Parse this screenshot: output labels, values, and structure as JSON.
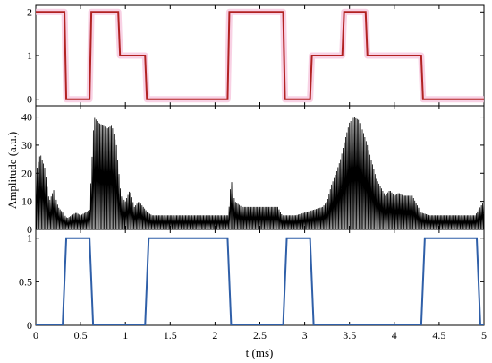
{
  "chart_data": [
    {
      "type": "line",
      "panel": "top",
      "title": "",
      "ylabel": "",
      "xlim": [
        0,
        5
      ],
      "ylim": [
        -0.15,
        2.15
      ],
      "yticks": [
        0,
        1,
        2
      ],
      "grid": false,
      "series": [
        {
          "color": "#b22222",
          "halo_color": "#f6c6dd",
          "x": [
            0.0,
            0.32,
            0.34,
            0.6,
            0.62,
            0.92,
            0.94,
            1.22,
            1.24,
            2.14,
            2.16,
            2.76,
            2.78,
            3.06,
            3.08,
            3.42,
            3.44,
            3.68,
            3.7,
            4.3,
            4.32,
            5.0
          ],
          "y": [
            2,
            2,
            0,
            0,
            2,
            2,
            1,
            1,
            0,
            0,
            2,
            2,
            0,
            0,
            1,
            1,
            2,
            2,
            1,
            1,
            0,
            0
          ]
        }
      ]
    },
    {
      "type": "line",
      "panel": "middle",
      "title": "",
      "ylabel": "Amplitude (a.u.)",
      "xlim": [
        0,
        5
      ],
      "ylim": [
        0,
        44
      ],
      "yticks": [
        0,
        10,
        20,
        30,
        40
      ],
      "grid": false,
      "series": [
        {
          "color": "#000000",
          "render": "dense-oscillation",
          "envelope_x": [
            0.0,
            0.05,
            0.1,
            0.15,
            0.2,
            0.25,
            0.3,
            0.35,
            0.4,
            0.45,
            0.5,
            0.55,
            0.6,
            0.65,
            0.7,
            0.75,
            0.8,
            0.85,
            0.9,
            0.95,
            1.0,
            1.05,
            1.1,
            1.15,
            1.2,
            1.25,
            1.3,
            1.4,
            1.5,
            1.6,
            1.7,
            1.8,
            1.9,
            2.0,
            2.1,
            2.15,
            2.18,
            2.22,
            2.3,
            2.4,
            2.5,
            2.6,
            2.7,
            2.75,
            2.8,
            2.9,
            3.0,
            3.1,
            3.2,
            3.25,
            3.3,
            3.35,
            3.4,
            3.45,
            3.5,
            3.55,
            3.6,
            3.65,
            3.7,
            3.75,
            3.8,
            3.85,
            3.9,
            3.95,
            4.0,
            4.05,
            4.1,
            4.2,
            4.3,
            4.4,
            4.5,
            4.6,
            4.7,
            4.8,
            4.9,
            5.0
          ],
          "envelope_y": [
            20,
            27,
            22,
            10,
            14,
            8,
            6,
            4,
            5,
            6,
            5,
            6,
            7,
            40,
            38,
            37,
            36,
            37,
            30,
            12,
            10,
            14,
            8,
            10,
            8,
            6,
            5,
            5,
            5,
            5,
            5,
            5,
            5,
            5,
            5,
            5,
            18,
            10,
            8,
            8,
            8,
            8,
            8,
            5,
            5,
            5,
            6,
            7,
            8,
            10,
            16,
            20,
            25,
            32,
            38,
            40,
            39,
            35,
            30,
            24,
            18,
            15,
            12,
            14,
            12,
            13,
            12,
            12,
            6,
            5,
            5,
            5,
            5,
            5,
            5,
            10
          ]
        }
      ]
    },
    {
      "type": "line",
      "panel": "bottom",
      "title": "",
      "ylabel": "",
      "xlabel": "t (ms)",
      "xlim": [
        0,
        5
      ],
      "ylim": [
        0,
        1.1
      ],
      "yticks": [
        0,
        0.5,
        1
      ],
      "xticks": [
        0,
        0.5,
        1,
        1.5,
        2,
        2.5,
        3,
        3.5,
        4,
        4.5,
        5
      ],
      "grid": false,
      "series": [
        {
          "color": "#2f5fa8",
          "x": [
            0.0,
            0.3,
            0.34,
            0.6,
            0.64,
            1.22,
            1.26,
            2.14,
            2.18,
            2.76,
            2.8,
            3.06,
            3.1,
            4.3,
            4.34,
            4.92,
            4.96,
            5.0
          ],
          "y": [
            0,
            0,
            1,
            1,
            0,
            0,
            1,
            1,
            0,
            0,
            1,
            1,
            0,
            0,
            1,
            1,
            0,
            0
          ]
        }
      ]
    }
  ],
  "tick_labels": {
    "top_y": [
      "0",
      "1",
      "2"
    ],
    "middle_y": [
      "0",
      "10",
      "20",
      "30",
      "40"
    ],
    "bottom_y": [
      "0",
      "0.5",
      "1"
    ],
    "bottom_x": [
      "0",
      "0.5",
      "1",
      "1.5",
      "2",
      "2.5",
      "3",
      "3.5",
      "4",
      "4.5",
      "5"
    ]
  },
  "labels": {
    "ylabel": "Amplitude (a.u.)",
    "xlabel": "t (ms)"
  }
}
